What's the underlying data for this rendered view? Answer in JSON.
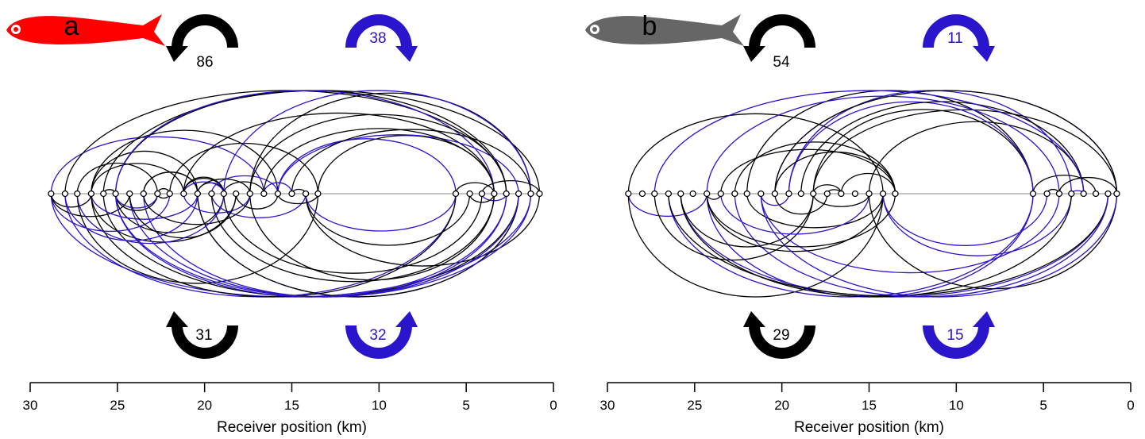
{
  "colors": {
    "black": "#000000",
    "blue": "#2a14cc",
    "red_fish": "#ff0000",
    "grey_fish": "#666666",
    "receiver_fill": "#ffffff"
  },
  "chart_data": [
    {
      "type": "arc-diagram",
      "panel_label": "a",
      "fish_icon": "red-fish-icon",
      "xlabel": "Receiver position (km)",
      "xlim": [
        30,
        0
      ],
      "xticks": [
        30,
        25,
        20,
        15,
        10,
        5,
        0
      ],
      "receivers": [
        28.8,
        28.0,
        27.3,
        26.5,
        25.8,
        25.1,
        24.3,
        23.5,
        22.7,
        22.0,
        21.2,
        20.4,
        19.6,
        18.9,
        18.2,
        17.4,
        16.6,
        15.8,
        15.0,
        14.2,
        13.5,
        5.6,
        4.8,
        4.1,
        3.4,
        2.7,
        2.0,
        1.3,
        0.8
      ],
      "movement_counts": [
        {
          "arrow": "upper-left",
          "color": "black",
          "value": 86
        },
        {
          "arrow": "upper-right",
          "color": "blue",
          "value": 38
        },
        {
          "arrow": "lower-left",
          "color": "black",
          "value": 31
        },
        {
          "arrow": "lower-right",
          "color": "blue",
          "value": 32
        }
      ]
    },
    {
      "type": "arc-diagram",
      "panel_label": "b",
      "fish_icon": "grey-fish-icon",
      "xlabel": "Receiver position (km)",
      "xlim": [
        30,
        0
      ],
      "xticks": [
        30,
        25,
        20,
        15,
        10,
        5,
        0
      ],
      "receivers": [
        28.8,
        28.0,
        27.3,
        26.5,
        25.8,
        25.1,
        24.3,
        23.5,
        22.7,
        22.0,
        21.2,
        20.4,
        19.6,
        18.9,
        18.2,
        17.4,
        16.6,
        15.8,
        15.0,
        14.2,
        13.5,
        5.6,
        4.8,
        4.1,
        3.4,
        2.7,
        2.0,
        1.3,
        0.8
      ],
      "movement_counts": [
        {
          "arrow": "upper-left",
          "color": "black",
          "value": 54
        },
        {
          "arrow": "upper-right",
          "color": "blue",
          "value": 11
        },
        {
          "arrow": "lower-left",
          "color": "black",
          "value": 29
        },
        {
          "arrow": "lower-right",
          "color": "blue",
          "value": 15
        }
      ]
    }
  ]
}
